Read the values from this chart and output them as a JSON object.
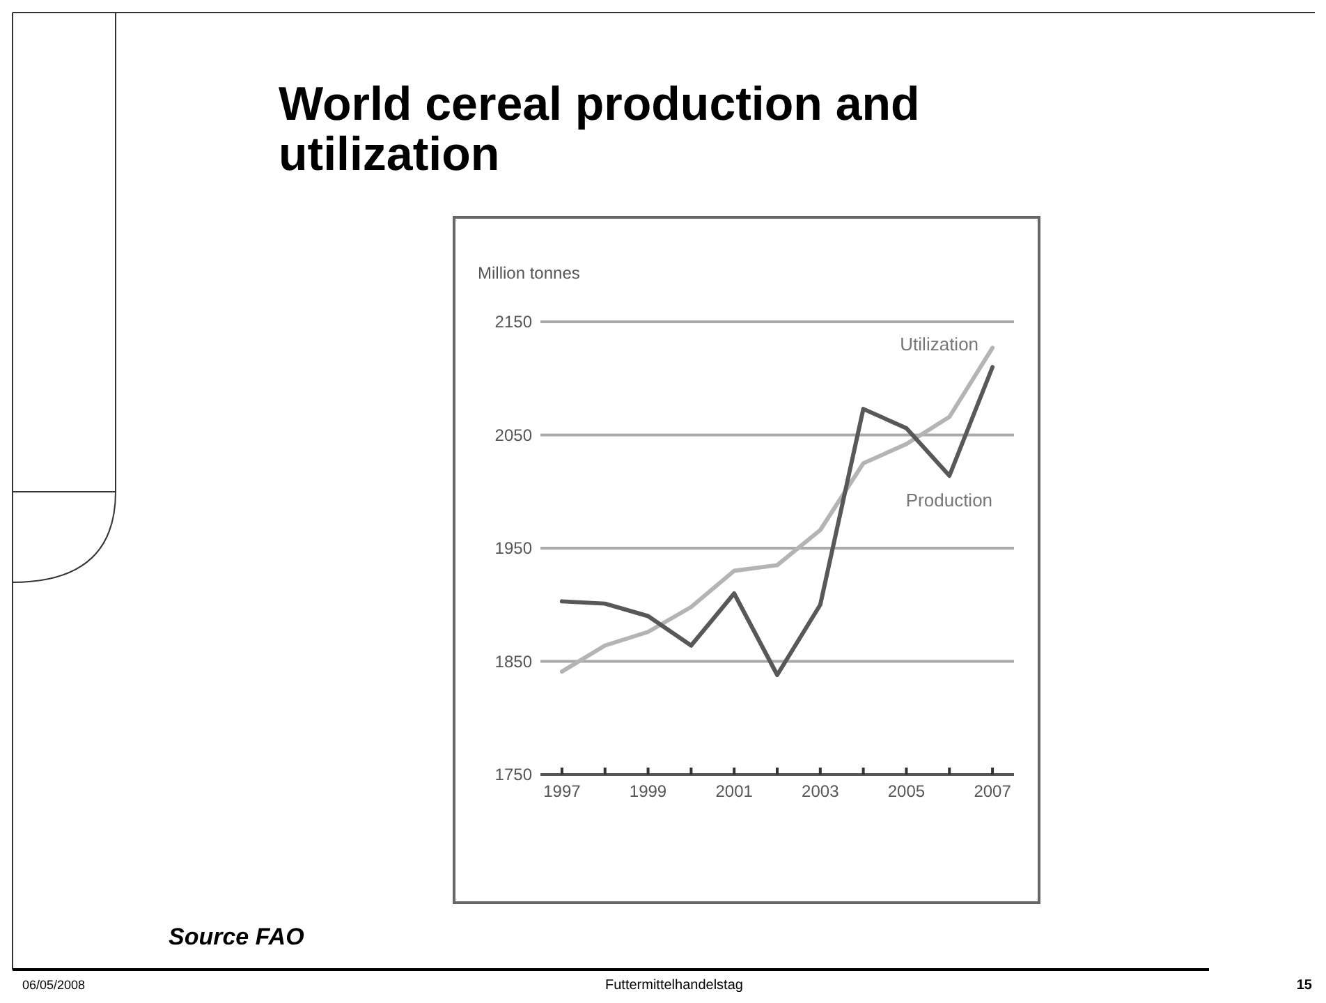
{
  "chart_data": {
    "type": "line",
    "title": "World cereal production and utilization",
    "ylabel": "Million tonnes",
    "x": [
      1997,
      1998,
      1999,
      2000,
      2001,
      2002,
      2003,
      2004,
      2005,
      2006,
      2007
    ],
    "series": [
      {
        "name": "Utilization",
        "color": "#b4b4b4",
        "values": [
          1841,
          1864,
          1876,
          1898,
          1930,
          1935,
          1966,
          2025,
          2042,
          2066,
          2127
        ]
      },
      {
        "name": "Production",
        "color": "#585858",
        "values": [
          1903,
          1901,
          1890,
          1864,
          1910,
          1838,
          1900,
          2073,
          2056,
          2014,
          2110
        ]
      }
    ],
    "xlim": [
      1996.5,
      2007.5
    ],
    "xticks": [
      1997,
      {
        "value": 1998,
        "label": null
      },
      1999,
      {
        "value": 2000,
        "label": null
      },
      2001,
      {
        "value": 2002,
        "label": null
      },
      2003,
      {
        "value": 2004,
        "label": null
      },
      2005,
      {
        "value": 2006,
        "label": null
      },
      2007
    ],
    "ylim": [
      1750,
      2150
    ],
    "yticks": [
      1750,
      1850,
      1950,
      2050,
      2150
    ],
    "grid": "y",
    "legend": false,
    "marker": "none",
    "line_style": "solid",
    "annotations": [
      "Source FAO",
      "06/05/2008",
      "Futtermittelhandelstag",
      "15"
    ]
  }
}
